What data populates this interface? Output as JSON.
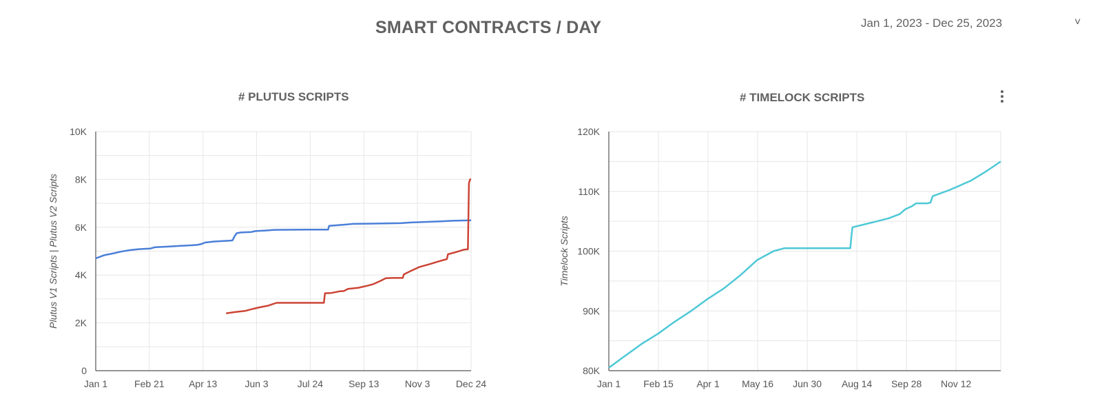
{
  "header": {
    "title": "SMART CONTRACTS / DAY",
    "date_range": "Jan 1, 2023 - Dec 25, 2023",
    "chevron": "˅",
    "chevron_icon": "chevron-down-icon"
  },
  "menu_icon": "more-vert-icon",
  "chart_data": [
    {
      "type": "line",
      "title": "# PLUTUS SCRIPTS",
      "xlabel": "",
      "ylabel": "Plutus V1 Scripts | Plutus V2 Scripts",
      "x_ticks": [
        "Jan 1",
        "Feb 21",
        "Apr 13",
        "Jun 3",
        "Jul 24",
        "Sep 13",
        "Nov 3",
        "Dec 24"
      ],
      "x_range_days": [
        0,
        357
      ],
      "y_ticks": [
        "0",
        "2K",
        "4K",
        "6K",
        "8K",
        "10K"
      ],
      "ylim": [
        0,
        10000
      ],
      "grid": true,
      "series": [
        {
          "color": "#4a7fd8",
          "points": [
            [
              0,
              4700
            ],
            [
              8,
              4830
            ],
            [
              16,
              4900
            ],
            [
              24,
              4980
            ],
            [
              32,
              5040
            ],
            [
              40,
              5080
            ],
            [
              48,
              5100
            ],
            [
              52,
              5110
            ],
            [
              56,
              5160
            ],
            [
              64,
              5180
            ],
            [
              72,
              5200
            ],
            [
              80,
              5220
            ],
            [
              88,
              5240
            ],
            [
              96,
              5260
            ],
            [
              100,
              5290
            ],
            [
              104,
              5360
            ],
            [
              112,
              5400
            ],
            [
              120,
              5420
            ],
            [
              128,
              5440
            ],
            [
              130,
              5450
            ],
            [
              132,
              5620
            ],
            [
              134,
              5750
            ],
            [
              138,
              5780
            ],
            [
              148,
              5800
            ],
            [
              152,
              5840
            ],
            [
              160,
              5860
            ],
            [
              170,
              5890
            ],
            [
              200,
              5900
            ],
            [
              221,
              5900
            ],
            [
              222,
              6060
            ],
            [
              235,
              6100
            ],
            [
              245,
              6140
            ],
            [
              260,
              6150
            ],
            [
              290,
              6170
            ],
            [
              300,
              6200
            ],
            [
              320,
              6230
            ],
            [
              340,
              6270
            ],
            [
              357,
              6290
            ]
          ]
        },
        {
          "color": "#cc4435",
          "points": [
            [
              124,
              2400
            ],
            [
              132,
              2450
            ],
            [
              142,
              2500
            ],
            [
              150,
              2590
            ],
            [
              156,
              2650
            ],
            [
              164,
              2720
            ],
            [
              172,
              2840
            ],
            [
              190,
              2840
            ],
            [
              210,
              2840
            ],
            [
              217,
              2840
            ],
            [
              218,
              3240
            ],
            [
              224,
              3250
            ],
            [
              232,
              3320
            ],
            [
              236,
              3330
            ],
            [
              240,
              3420
            ],
            [
              250,
              3470
            ],
            [
              258,
              3550
            ],
            [
              264,
              3620
            ],
            [
              270,
              3740
            ],
            [
              276,
              3870
            ],
            [
              282,
              3880
            ],
            [
              292,
              3880
            ],
            [
              293,
              4030
            ],
            [
              300,
              4180
            ],
            [
              308,
              4340
            ],
            [
              318,
              4460
            ],
            [
              326,
              4570
            ],
            [
              334,
              4670
            ],
            [
              335,
              4870
            ],
            [
              342,
              4950
            ],
            [
              350,
              5060
            ],
            [
              354,
              5080
            ],
            [
              355,
              7850
            ],
            [
              356,
              8000
            ],
            [
              357,
              8000
            ]
          ]
        }
      ]
    },
    {
      "type": "line",
      "title": "# TIMELOCK SCRIPTS",
      "xlabel": "",
      "ylabel": "Timelock Scripts",
      "x_ticks": [
        "Jan 1",
        "Feb 15",
        "Apr 1",
        "May 16",
        "Jun 30",
        "Aug 14",
        "Sep 28",
        "Nov 12"
      ],
      "x_range_days": [
        0,
        357
      ],
      "y_ticks": [
        "80K",
        "90K",
        "100K",
        "110K",
        "120K"
      ],
      "ylim": [
        80000,
        120000
      ],
      "grid": true,
      "series": [
        {
          "color": "#4dc8d6",
          "points": [
            [
              0,
              80500
            ],
            [
              15,
              82500
            ],
            [
              30,
              84500
            ],
            [
              45,
              86200
            ],
            [
              60,
              88200
            ],
            [
              75,
              90000
            ],
            [
              90,
              92000
            ],
            [
              105,
              93800
            ],
            [
              120,
              96000
            ],
            [
              135,
              98500
            ],
            [
              150,
              100000
            ],
            [
              160,
              100500
            ],
            [
              175,
              100500
            ],
            [
              200,
              100500
            ],
            [
              220,
              100500
            ],
            [
              221,
              102500
            ],
            [
              222,
              104000
            ],
            [
              240,
              104800
            ],
            [
              255,
              105500
            ],
            [
              265,
              106200
            ],
            [
              270,
              107000
            ],
            [
              276,
              107500
            ],
            [
              280,
              108000
            ],
            [
              290,
              108000
            ],
            [
              293,
              108100
            ],
            [
              295,
              109200
            ],
            [
              310,
              110200
            ],
            [
              330,
              111800
            ],
            [
              345,
              113500
            ],
            [
              357,
              115000
            ]
          ]
        }
      ]
    }
  ]
}
